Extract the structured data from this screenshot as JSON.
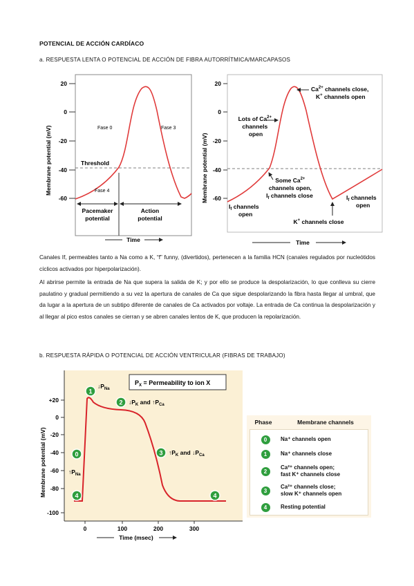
{
  "page_title": "POTENCIAL DE ACCIÓN CARDÍACO",
  "section_a": "a. RESPUESTA LENTA O POTENCIAL DE ACCIÓN DE FIBRA AUTORRÍTMICA/MARCAPASOS",
  "section_b": "b. RESPUESTA RÁPIDA O POTENCIAL DE ACCIÓN VENTRICULAR (FIBRAS DE TRABAJO)",
  "paragraphs": [
    "Canales If, permeables tanto a Na como a K, “f” funny, (divertidos), pertenecen a la familia HCN (canales regulados por nucleótidos cíclicos activados por hiperpolarización).",
    "Al abrirse permite la entrada de Na que supera la salida de K; y por ello se produce la despolarización, lo que conlleva su cierre paulatino y gradual permitiendo a su vez la apertura de canales de Ca que sigue despolarizando la fibra hasta llegar al umbral, que da lugar a la apertura de un subtipo diferente de canales de Ca activados por voltaje.  La entrada de Ca continua la despolarización y al llegar al pico estos canales se cierran y se abren canales lentos de K, que producen la repolarización."
  ],
  "figure1": {
    "ylabel": "Membrane potential (mV)",
    "yticks": [
      "20",
      "0",
      "-20",
      "-40",
      "-60"
    ],
    "xlabel": "Time",
    "threshold": "Threshold",
    "fase0": "Fase 0",
    "fase3": "Fase 3",
    "fase4": "Fase 4",
    "pacemaker": [
      "Pacemaker",
      "potential"
    ],
    "action": [
      "Action",
      "potential"
    ]
  },
  "figure2": {
    "ylabel": "Membrane potential (mV)",
    "yticks": [
      "20",
      "0",
      "-20",
      "-40",
      "-60"
    ],
    "xlabel": "Time",
    "ca_close": [
      "Ca",
      "2+",
      " channels close,",
      "K",
      "+",
      " channels open"
    ],
    "lots_ca": [
      "Lots of Ca",
      "2+",
      "channels",
      "open"
    ],
    "some_ca": [
      "Some Ca",
      "2+",
      "channels open,",
      "I",
      "f",
      " channels close"
    ],
    "if_open": [
      "I",
      "f",
      " channels",
      "open"
    ],
    "if_open_right": [
      "I",
      "f",
      " channels",
      "open"
    ],
    "k_close": [
      "K",
      "+",
      " channels close"
    ]
  },
  "figure3": {
    "legend_box": [
      "P",
      "X",
      " = Permeability to ion X"
    ],
    "ylabel": "Membrane potential (mV)",
    "yticks": [
      "+20",
      "0",
      "-20",
      "-40",
      "-60",
      "-80",
      "-100"
    ],
    "xticks": [
      "0",
      "100",
      "200",
      "300"
    ],
    "xlabel": "Time (msec)",
    "phase1_label": [
      "P",
      "Na"
    ],
    "phase2_label": [
      "P",
      "K",
      " and ",
      "P",
      "Ca"
    ],
    "phase3_label": [
      "P",
      "K",
      " and ",
      "P",
      "Ca"
    ],
    "phase0_label": [
      "P",
      "Na"
    ],
    "phase_numbers": [
      "0",
      "1",
      "2",
      "3",
      "4"
    ]
  },
  "phase_table": {
    "header": [
      "Phase",
      "Membrane channels"
    ],
    "rows": [
      {
        "phase": "0",
        "text": [
          "Na⁺ channels open"
        ]
      },
      {
        "phase": "1",
        "text": [
          "Na⁺ channels close"
        ]
      },
      {
        "phase": "2",
        "text": [
          "Ca²⁺ channels open;",
          "fast K⁺ channels close"
        ]
      },
      {
        "phase": "3",
        "text": [
          "Ca²⁺ channels close;",
          "slow K⁺ channels open"
        ]
      },
      {
        "phase": "4",
        "text": [
          "Resting potential"
        ]
      }
    ]
  },
  "colors": {
    "curve": "#d8232a",
    "phase_badge": "#2f9e3e",
    "plot_bg_fig3": "#fbf0d5",
    "table_bg": "#fdf5e6"
  }
}
